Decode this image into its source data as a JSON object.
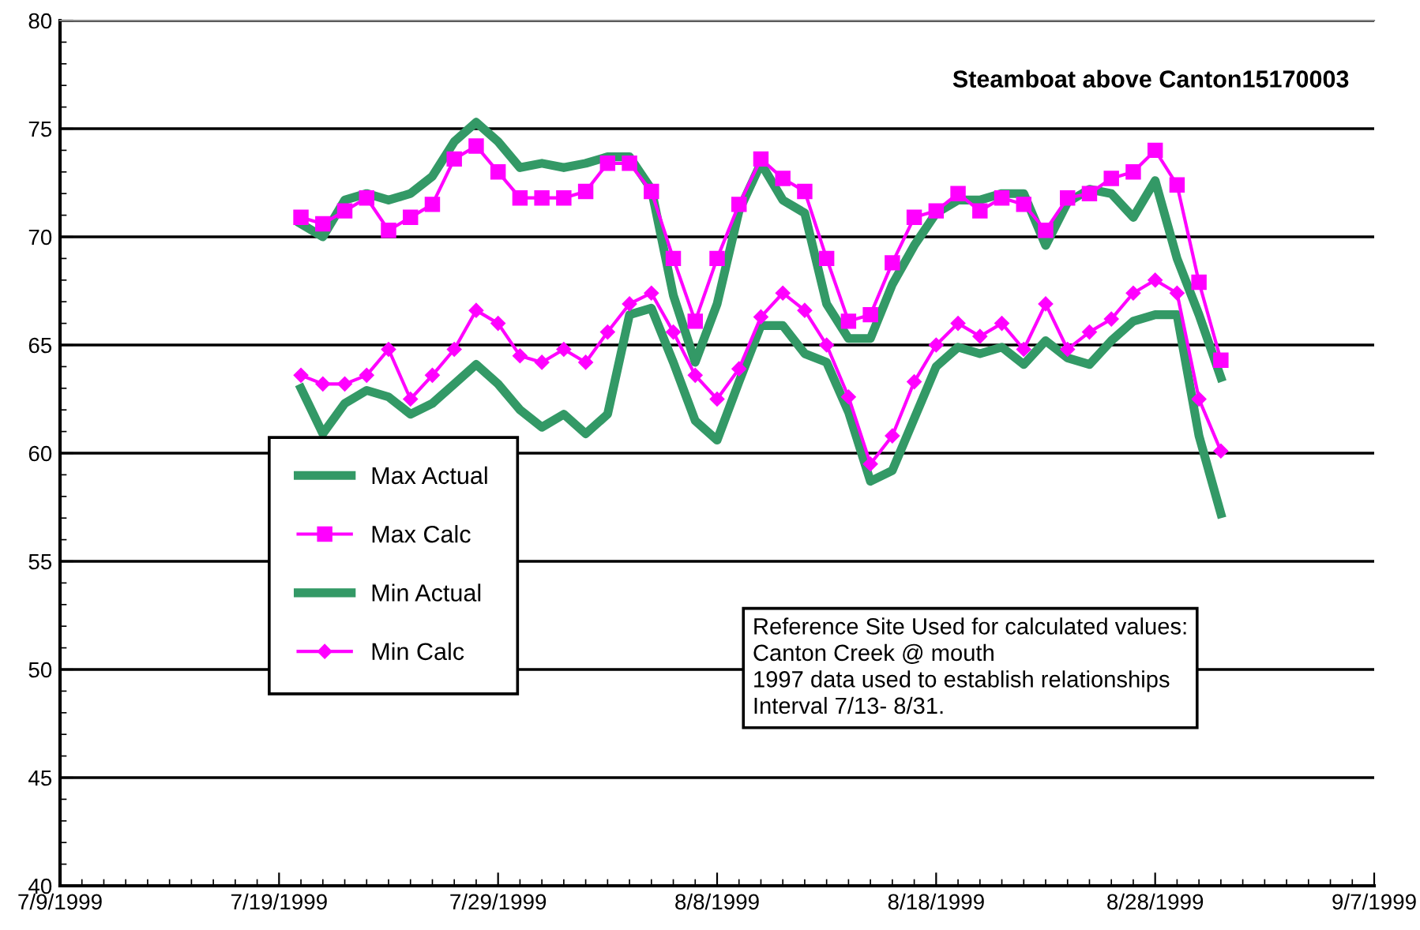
{
  "chart_data": {
    "type": "line",
    "title": "Steamboat above Canton15170003",
    "x": [
      "1999-07-20",
      "1999-07-21",
      "1999-07-22",
      "1999-07-23",
      "1999-07-24",
      "1999-07-25",
      "1999-07-26",
      "1999-07-27",
      "1999-07-28",
      "1999-07-29",
      "1999-07-30",
      "1999-07-31",
      "1999-08-01",
      "1999-08-02",
      "1999-08-03",
      "1999-08-04",
      "1999-08-05",
      "1999-08-06",
      "1999-08-07",
      "1999-08-08",
      "1999-08-09",
      "1999-08-10",
      "1999-08-11",
      "1999-08-12",
      "1999-08-13",
      "1999-08-14",
      "1999-08-15",
      "1999-08-16",
      "1999-08-17",
      "1999-08-18",
      "1999-08-19",
      "1999-08-20",
      "1999-08-21",
      "1999-08-22",
      "1999-08-23",
      "1999-08-24",
      "1999-08-25",
      "1999-08-26",
      "1999-08-27",
      "1999-08-28",
      "1999-08-29",
      "1999-08-30",
      "1999-08-31"
    ],
    "series": [
      {
        "name": "Max Actual",
        "color": "#339966",
        "marker": "none",
        "values": [
          70.6,
          70.0,
          71.7,
          72.0,
          71.7,
          72.0,
          72.8,
          74.4,
          75.3,
          74.4,
          73.2,
          73.4,
          73.2,
          73.4,
          73.7,
          73.7,
          72.2,
          67.3,
          64.2,
          66.9,
          71.2,
          73.4,
          71.7,
          71.1,
          66.9,
          65.3,
          65.3,
          67.8,
          69.6,
          71.1,
          71.7,
          71.7,
          72.0,
          72.0,
          69.6,
          71.6,
          72.2,
          72.0,
          70.9,
          72.6,
          69.0,
          66.4,
          63.5
        ]
      },
      {
        "name": "Max Calc",
        "color": "#ff00ff",
        "marker": "square",
        "values": [
          70.9,
          70.6,
          71.2,
          71.8,
          70.3,
          70.9,
          71.5,
          73.6,
          74.2,
          73.0,
          71.8,
          71.8,
          71.8,
          72.1,
          73.4,
          73.4,
          72.1,
          69.0,
          66.1,
          69.0,
          71.5,
          73.6,
          72.7,
          72.1,
          69.0,
          66.1,
          66.4,
          68.8,
          70.9,
          71.2,
          72.0,
          71.2,
          71.8,
          71.5,
          70.3,
          71.8,
          72.0,
          72.7,
          73.0,
          74.0,
          72.4,
          67.9,
          64.3
        ]
      },
      {
        "name": "Min Actual",
        "color": "#339966",
        "marker": "none",
        "values": [
          63.0,
          60.9,
          62.3,
          62.9,
          62.6,
          61.8,
          62.3,
          63.2,
          64.1,
          63.2,
          62.0,
          61.2,
          61.8,
          60.9,
          61.8,
          66.4,
          66.7,
          64.2,
          61.5,
          60.6,
          63.3,
          65.9,
          65.9,
          64.6,
          64.2,
          61.9,
          58.7,
          59.2,
          61.6,
          64.0,
          64.9,
          64.6,
          64.9,
          64.1,
          65.2,
          64.4,
          64.1,
          65.2,
          66.1,
          66.4,
          66.4,
          60.8,
          57.2
        ]
      },
      {
        "name": "Min Calc",
        "color": "#ff00ff",
        "marker": "diamond",
        "values": [
          63.6,
          63.2,
          63.2,
          63.6,
          64.8,
          62.5,
          63.6,
          64.8,
          66.6,
          66.0,
          64.5,
          64.2,
          64.8,
          64.2,
          65.6,
          66.9,
          67.4,
          65.6,
          63.6,
          62.5,
          63.9,
          66.3,
          67.4,
          66.6,
          65.0,
          62.6,
          59.5,
          60.8,
          63.3,
          65.0,
          66.0,
          65.4,
          66.0,
          64.8,
          66.9,
          64.8,
          65.6,
          66.2,
          67.4,
          68.0,
          67.4,
          62.5,
          60.1
        ]
      }
    ],
    "xlim": [
      "1999-07-09",
      "1999-09-07"
    ],
    "xticks": [
      {
        "value": "1999-07-09",
        "label": "7/9/1999"
      },
      {
        "value": "1999-07-19",
        "label": "7/19/1999"
      },
      {
        "value": "1999-07-29",
        "label": "7/29/1999"
      },
      {
        "value": "1999-08-08",
        "label": "8/8/1999"
      },
      {
        "value": "1999-08-18",
        "label": "8/18/1999"
      },
      {
        "value": "1999-08-28",
        "label": "8/28/1999"
      },
      {
        "value": "1999-09-07",
        "label": "9/7/1999"
      }
    ],
    "ylim": [
      40,
      80
    ],
    "yticks": [
      40,
      45,
      50,
      55,
      60,
      65,
      70,
      75,
      80
    ],
    "grid": "y",
    "legend": "left",
    "annotations": [
      "Reference Site Used for calculated values:\nCanton Creek @ mouth\n1997 data used to establish relationships\nInterval 7/13- 8/31."
    ]
  }
}
